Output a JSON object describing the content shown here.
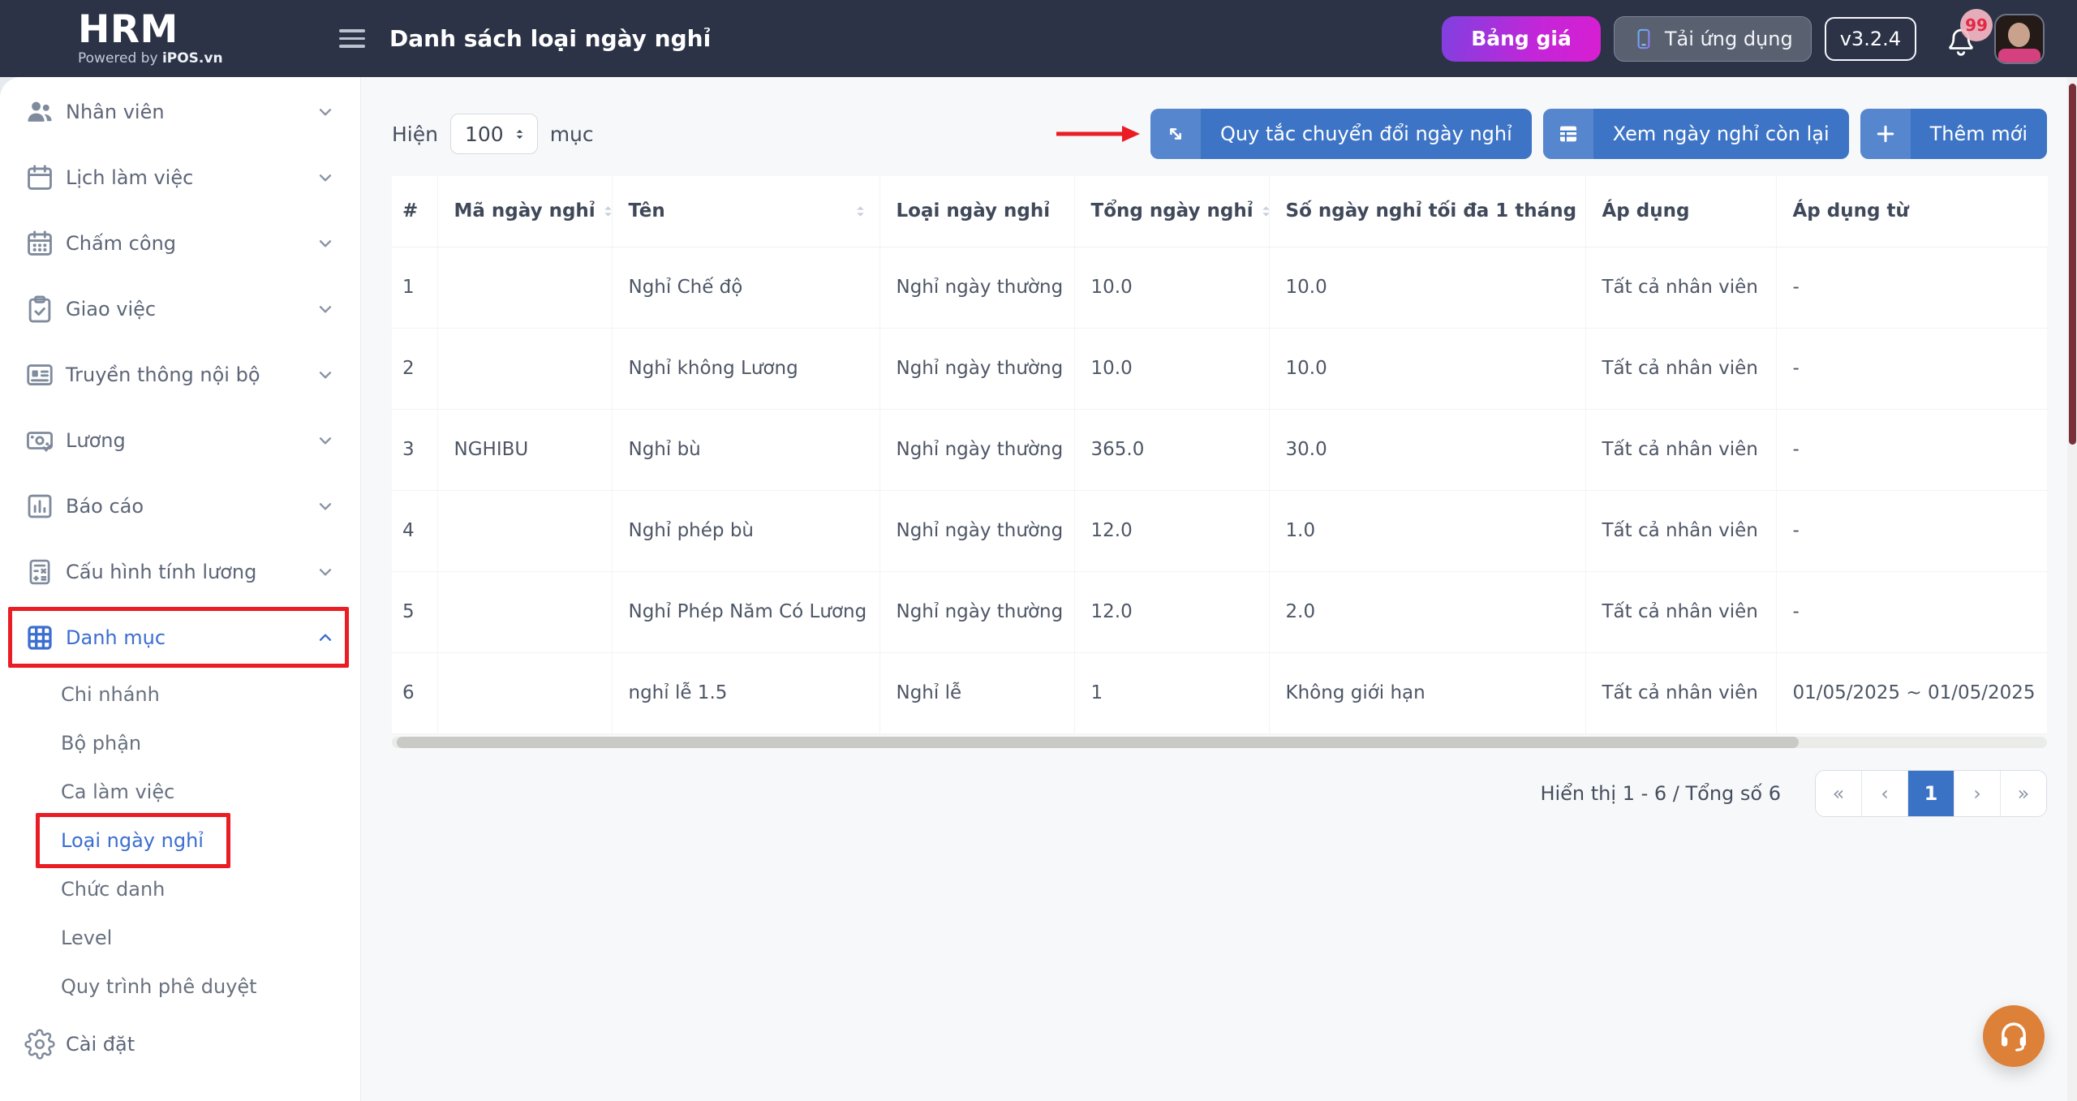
{
  "header": {
    "logo": "HRM",
    "logo_powered_prefix": "Powered by",
    "logo_powered_brand": "iPOS.vn",
    "title": "Danh sách loại ngày nghỉ",
    "pricing_button": "Bảng giá",
    "download_app_button": "Tải ứng dụng",
    "version": "v3.2.4",
    "notification_count": "99"
  },
  "sidebar": {
    "items": [
      {
        "name": "nhan-vien",
        "label": "Nhân viên",
        "icon": "users-icon",
        "chevron": "down",
        "type": "main"
      },
      {
        "name": "lich-lam-viec",
        "label": "Lịch làm việc",
        "icon": "calendar-icon",
        "chevron": "down",
        "type": "main"
      },
      {
        "name": "cham-cong",
        "label": "Chấm công",
        "icon": "calendar-days-icon",
        "chevron": "down",
        "type": "main"
      },
      {
        "name": "giao-viec",
        "label": "Giao việc",
        "icon": "clipboard-check-icon",
        "chevron": "down",
        "type": "main"
      },
      {
        "name": "truyen-thong-noi-bo",
        "label": "Truyền thông nội bộ",
        "icon": "newspaper-icon",
        "chevron": "down",
        "type": "main"
      },
      {
        "name": "luong",
        "label": "Lương",
        "icon": "money-icon",
        "chevron": "down",
        "type": "main"
      },
      {
        "name": "bao-cao",
        "label": "Báo cáo",
        "icon": "bar-chart-icon",
        "chevron": "down",
        "type": "main"
      },
      {
        "name": "cau-hinh-tinh-luong",
        "label": "Cấu hình tính lương",
        "icon": "calculator-icon",
        "chevron": "down",
        "type": "main"
      },
      {
        "name": "danh-muc",
        "label": "Danh mục",
        "icon": "grid-icon",
        "chevron": "up",
        "type": "main",
        "active": true,
        "annotated": true
      },
      {
        "name": "chi-nhanh",
        "label": "Chi nhánh",
        "type": "sub"
      },
      {
        "name": "bo-phan",
        "label": "Bộ phận",
        "type": "sub"
      },
      {
        "name": "ca-lam-viec",
        "label": "Ca làm việc",
        "type": "sub"
      },
      {
        "name": "loai-ngay-nghi",
        "label": "Loại ngày nghỉ",
        "type": "sub",
        "active": true,
        "annotated": true
      },
      {
        "name": "chuc-danh",
        "label": "Chức danh",
        "type": "sub"
      },
      {
        "name": "level",
        "label": "Level",
        "type": "sub"
      },
      {
        "name": "quy-trinh-phe-duyet",
        "label": "Quy trình phê duyệt",
        "type": "sub"
      },
      {
        "name": "cai-dat",
        "label": "Cài đặt",
        "icon": "gear-icon",
        "type": "main"
      }
    ]
  },
  "toolbar": {
    "show_label": "Hiện",
    "page_size": "100",
    "unit_label": "mục",
    "buttons": [
      {
        "name": "leave-conversion-rules-button",
        "label": "Quy tắc chuyển đổi ngày nghỉ",
        "icon": "diagonal-arrow-icon"
      },
      {
        "name": "view-remaining-leave-button",
        "label": "Xem ngày nghỉ còn lại",
        "icon": "table-icon"
      },
      {
        "name": "add-new-button",
        "label": "Thêm mới",
        "icon": "plus-icon"
      }
    ]
  },
  "table": {
    "columns": [
      {
        "label": "#",
        "sortable": false
      },
      {
        "label": "Mã ngày nghỉ",
        "sortable": true
      },
      {
        "label": "Tên",
        "sortable": true
      },
      {
        "label": "Loại ngày nghỉ",
        "sortable": false
      },
      {
        "label": "Tổng ngày nghỉ",
        "sortable": true
      },
      {
        "label": "Số ngày nghỉ tối đa 1 tháng",
        "sortable": false
      },
      {
        "label": "Áp dụng",
        "sortable": false
      },
      {
        "label": "Áp dụng từ",
        "sortable": false
      }
    ],
    "rows": [
      [
        "1",
        "",
        "Nghỉ Chế độ",
        "Nghỉ ngày thường",
        "10.0",
        "10.0",
        "Tất cả nhân viên",
        "-"
      ],
      [
        "2",
        "",
        "Nghỉ không Lương",
        "Nghỉ ngày thường",
        "10.0",
        "10.0",
        "Tất cả nhân viên",
        "-"
      ],
      [
        "3",
        "NGHIBU",
        "Nghỉ bù",
        "Nghỉ ngày thường",
        "365.0",
        "30.0",
        "Tất cả nhân viên",
        "-"
      ],
      [
        "4",
        "",
        "Nghỉ phép bù",
        "Nghỉ ngày thường",
        "12.0",
        "1.0",
        "Tất cả nhân viên",
        "-"
      ],
      [
        "5",
        "",
        "Nghỉ Phép Năm Có Lương",
        "Nghỉ ngày thường",
        "12.0",
        "2.0",
        "Tất cả nhân viên",
        "-"
      ],
      [
        "6",
        "",
        "nghỉ lễ 1.5",
        "Nghỉ lễ",
        "1",
        "Không giới hạn",
        "Tất cả nhân viên",
        "01/05/2025 ~ 01/05/2025"
      ]
    ]
  },
  "pagination": {
    "info": "Hiển thị 1 - 6 / Tổng số 6",
    "buttons": [
      {
        "name": "first-page",
        "label": "«"
      },
      {
        "name": "prev-page",
        "label": "‹"
      },
      {
        "name": "page-1",
        "label": "1",
        "active": true
      },
      {
        "name": "next-page",
        "label": "›"
      },
      {
        "name": "last-page",
        "label": "»"
      }
    ]
  },
  "colors": {
    "topbar_bg": "#2c3347",
    "accent_blue": "#3d74c6",
    "active_link_blue": "#3b6ed0",
    "annotation_red": "#ea1c24",
    "fab_orange": "#dd8038",
    "pricing_gradient_start": "#8040e0",
    "pricing_gradient_end": "#d81ed1",
    "pagination_active": "#3a72c5"
  }
}
